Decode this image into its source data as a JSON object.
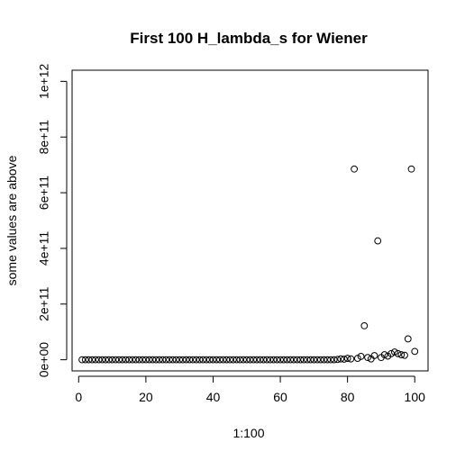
{
  "chart_data": {
    "type": "scatter",
    "title": "First 100 H_lambda_s for Wiener",
    "xlabel": "1:100",
    "ylabel": "some values are above",
    "xlim": [
      -1.96,
      103.96
    ],
    "ylim": [
      -40000000000.0,
      1040000000000.0
    ],
    "xticks": [
      0,
      20,
      40,
      60,
      80,
      100
    ],
    "xtick_labels": [
      "0",
      "20",
      "40",
      "60",
      "80",
      "100"
    ],
    "yticks": [
      0,
      200000000000.0,
      400000000000.0,
      600000000000.0,
      800000000000.0,
      1000000000000.0
    ],
    "ytick_labels": [
      "0e+00",
      "2e+11",
      "4e+11",
      "6e+11",
      "8e+11",
      "1e+12"
    ],
    "grid": false,
    "legend": "none",
    "x": [
      1,
      2,
      3,
      4,
      5,
      6,
      7,
      8,
      9,
      10,
      11,
      12,
      13,
      14,
      15,
      16,
      17,
      18,
      19,
      20,
      21,
      22,
      23,
      24,
      25,
      26,
      27,
      28,
      29,
      30,
      31,
      32,
      33,
      34,
      35,
      36,
      37,
      38,
      39,
      40,
      41,
      42,
      43,
      44,
      45,
      46,
      47,
      48,
      49,
      50,
      51,
      52,
      53,
      54,
      55,
      56,
      57,
      58,
      59,
      60,
      61,
      62,
      63,
      64,
      65,
      66,
      67,
      68,
      69,
      70,
      71,
      72,
      73,
      74,
      75,
      76,
      77,
      78,
      79,
      80,
      81,
      82,
      83,
      84,
      85,
      86,
      87,
      88,
      89,
      90,
      91,
      92,
      93,
      94,
      95,
      96,
      97,
      98,
      99,
      100
    ],
    "y": [
      0,
      0,
      0,
      0,
      0,
      0,
      0,
      0,
      0,
      0,
      0,
      0,
      0,
      0,
      0,
      0,
      0,
      0,
      0,
      0,
      0,
      0,
      0,
      0,
      0,
      0,
      0,
      0,
      0,
      0,
      0,
      0,
      0,
      0,
      0,
      0,
      0,
      0,
      0,
      0,
      0,
      0,
      0,
      0,
      0,
      0,
      0,
      0,
      0,
      0,
      0,
      0,
      0,
      0,
      0,
      0,
      0,
      0,
      0,
      0,
      0,
      0,
      0,
      0,
      0,
      0,
      0,
      0,
      0,
      0,
      0,
      0,
      0,
      0,
      0,
      0,
      1000000000.0,
      3000000000.0,
      2000000000.0,
      5000000000.0,
      3000000000.0,
      685000000000.0,
      5000000000.0,
      12000000000.0,
      122000000000.0,
      8000000000.0,
      3000000000.0,
      15000000000.0,
      427000000000.0,
      8000000000.0,
      18000000000.0,
      13000000000.0,
      22000000000.0,
      28000000000.0,
      22000000000.0,
      18000000000.0,
      16000000000.0,
      75000000000.0,
      685000000000.0,
      30000000000.0
    ]
  }
}
